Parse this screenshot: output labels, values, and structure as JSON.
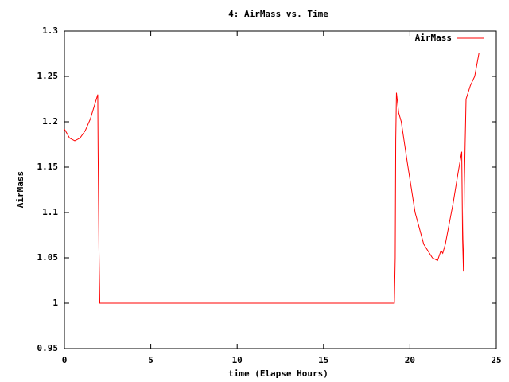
{
  "chart_data": {
    "type": "line",
    "title": "4: AirMass vs. Time",
    "xlabel": "time (Elapse Hours)",
    "ylabel": "AirMass",
    "x": [
      0,
      0.3,
      0.6,
      0.9,
      1.2,
      1.5,
      1.93,
      1.95,
      2.0,
      2.05,
      19.1,
      19.15,
      19.18,
      19.22,
      19.35,
      19.5,
      19.85,
      20.3,
      20.8,
      21.3,
      21.6,
      21.8,
      21.9,
      22.05,
      22.2,
      22.5,
      22.8,
      23.0,
      23.05,
      23.1,
      23.15,
      23.25,
      23.5,
      23.75,
      24.0
    ],
    "series": [
      {
        "name": "AirMass",
        "color": "#ff0000",
        "values": [
          1.192,
          1.182,
          1.179,
          1.182,
          1.19,
          1.203,
          1.23,
          1.17,
          1.06,
          1.0,
          1.0,
          1.05,
          1.18,
          1.232,
          1.21,
          1.2,
          1.155,
          1.1,
          1.065,
          1.05,
          1.047,
          1.058,
          1.055,
          1.065,
          1.08,
          1.11,
          1.145,
          1.167,
          1.07,
          1.035,
          1.13,
          1.225,
          1.24,
          1.25,
          1.276
        ]
      }
    ],
    "xlim": [
      0,
      25
    ],
    "xticks": [
      0,
      5,
      10,
      15,
      20,
      25
    ],
    "ylim": [
      0.95,
      1.3
    ],
    "yticks": [
      0.95,
      1,
      1.05,
      1.1,
      1.15,
      1.2,
      1.25,
      1.3
    ],
    "legend": "upper right",
    "grid": false
  }
}
